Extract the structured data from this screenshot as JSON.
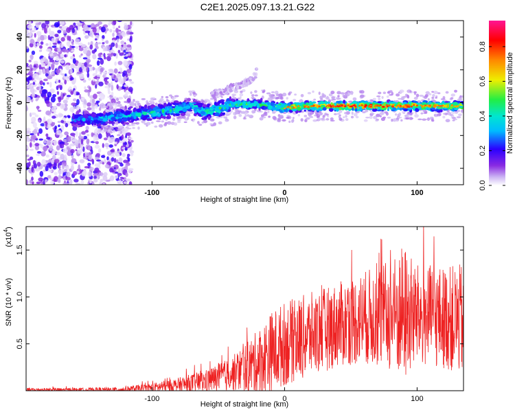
{
  "title": "C2E1.2025.097.13.21.G22",
  "chart_data": [
    {
      "type": "heatmap",
      "xlabel": "Height of straight line (km)",
      "ylabel": "Frequency (Hz)",
      "xlim": [
        -195,
        135
      ],
      "ylim": [
        -50,
        50
      ],
      "x_ticks": [
        -100,
        0,
        100
      ],
      "y_ticks": [
        -40,
        -20,
        0,
        20,
        40
      ],
      "colorbar": {
        "label": "Normalized spectral amplitude",
        "range": [
          0.0,
          0.95
        ],
        "ticks": [
          0.0,
          0.2,
          0.4,
          0.6,
          0.8
        ],
        "colors": [
          "#ffffff",
          "#cdb6f3",
          "#8a2be2",
          "#2b00ff",
          "#00d9ff",
          "#22ee44",
          "#eeee00",
          "#ff8800",
          "#ff0000",
          "#ff1493"
        ]
      },
      "ridge": {
        "x": [
          -160,
          -140,
          -120,
          -100,
          -80,
          -70,
          -60,
          -50,
          -40,
          -30,
          -20,
          -10,
          0,
          20,
          40,
          60,
          80,
          100,
          120,
          135
        ],
        "frequency": [
          -10,
          -10,
          -8,
          -6,
          -4,
          -2,
          -6,
          -4,
          -1,
          -1,
          -1,
          -2,
          -3,
          -2,
          -2,
          -2,
          -2,
          -2,
          -2,
          -2
        ],
        "peak_amplitude": [
          0.35,
          0.4,
          0.45,
          0.5,
          0.5,
          0.45,
          0.55,
          0.55,
          0.55,
          0.6,
          0.55,
          0.55,
          0.75,
          0.8,
          0.9,
          0.85,
          0.85,
          0.8,
          0.75,
          0.7
        ]
      },
      "noise_region_x": [
        -195,
        -125
      ],
      "secondary_feature": {
        "x": [
          -55,
          -45,
          -40,
          -35,
          -30,
          -25,
          -22,
          -20
        ],
        "frequency": [
          5,
          7,
          9,
          10,
          12,
          14,
          17,
          21
        ]
      }
    },
    {
      "type": "line",
      "xlabel": "Height of straight line (km)",
      "ylabel": "SNR (10 * v/v)",
      "y_multiplier": "(x10",
      "y_multiplier_exp": "4",
      "y_multiplier_close": ")",
      "xlim": [
        -195,
        135
      ],
      "ylim": [
        0,
        1.75
      ],
      "x_ticks": [
        -100,
        0,
        100
      ],
      "y_ticks": [
        0.5,
        1.0,
        1.5
      ],
      "y_tick_labels": [
        "0.5",
        "1.0",
        "1.5"
      ],
      "color": "#ee2222",
      "envelope": {
        "x": [
          -195,
          -150,
          -125,
          -100,
          -80,
          -60,
          -40,
          -20,
          -10,
          0,
          10,
          20,
          40,
          60,
          80,
          90,
          100,
          120,
          135
        ],
        "base": [
          0.01,
          0.01,
          0.01,
          0.03,
          0.06,
          0.1,
          0.18,
          0.3,
          0.4,
          0.5,
          0.55,
          0.6,
          0.7,
          0.78,
          0.8,
          0.82,
          0.8,
          0.78,
          0.75
        ],
        "amplitude": [
          0.02,
          0.02,
          0.03,
          0.05,
          0.08,
          0.12,
          0.18,
          0.35,
          0.45,
          0.45,
          0.45,
          0.45,
          0.45,
          0.5,
          0.6,
          0.75,
          0.55,
          0.55,
          0.6
        ]
      }
    }
  ]
}
